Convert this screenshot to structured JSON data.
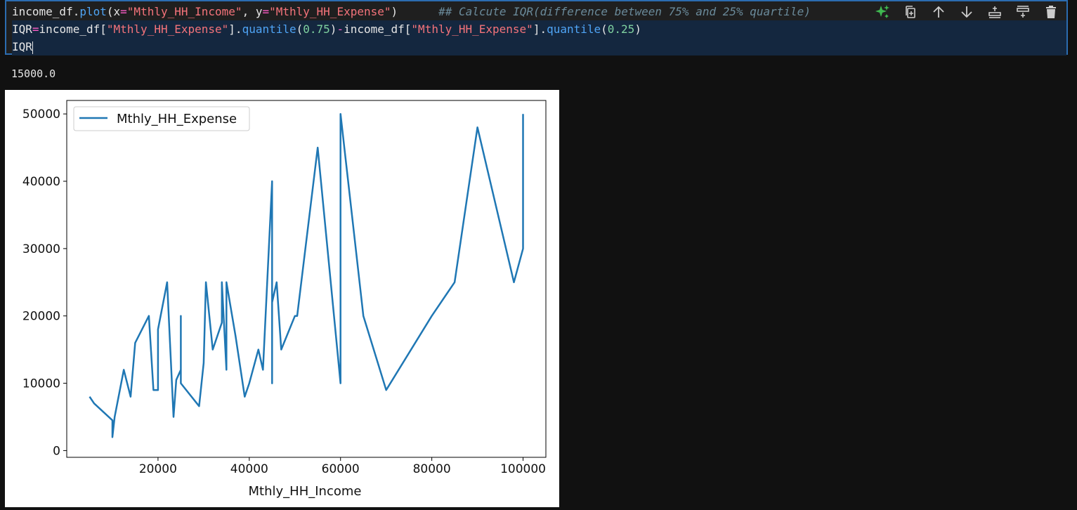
{
  "code": {
    "line1": {
      "var": "income_df",
      "dot": ".",
      "method": "plot",
      "open": "(",
      "arg1_key": "x",
      "eq1": "=",
      "arg1_val": "\"Mthly_HH_Income\"",
      "comma": ", ",
      "arg2_key": "y",
      "eq2": "=",
      "arg2_val": "\"Mthly_HH_Expense\"",
      "close": ")",
      "comment": "## Calcute IQR(difference between 75% and 25% quartile)"
    },
    "line2": {
      "lhs": "IQR",
      "eq": "=",
      "var1": "income_df",
      "ob1": "[",
      "key1": "\"Mthly_HH_Expense\"",
      "cb1": "]",
      "dot1": ".",
      "method1": "quantile",
      "op1": "(",
      "num1": "0.75",
      "cp1": ")",
      "minus": "-",
      "var2": "income_df",
      "ob2": "[",
      "key2": "\"Mthly_HH_Expense\"",
      "cb2": "].",
      "method2": "quantile",
      "op2": "(",
      "num2": "0.25",
      "cp2": ")"
    },
    "line3": "IQR"
  },
  "toolbar": {
    "icons": [
      "sparkle-icon",
      "copy-icon",
      "arrow-up-icon",
      "arrow-down-icon",
      "insert-below-icon",
      "insert-above-icon",
      "trash-icon"
    ],
    "sparkle_color": "#3fb950",
    "icon_color": "#cccccc"
  },
  "output": {
    "text": "15000.0"
  },
  "chart_data": {
    "type": "line",
    "title": "",
    "xlabel": "Mthly_HH_Income",
    "ylabel": "",
    "xlim": [
      0,
      105000
    ],
    "ylim": [
      -1000,
      52000
    ],
    "x_ticks": [
      20000,
      40000,
      60000,
      80000,
      100000
    ],
    "x_tick_labels": [
      "20000",
      "40000",
      "60000",
      "80000",
      "100000"
    ],
    "y_ticks": [
      0,
      10000,
      20000,
      30000,
      40000,
      50000
    ],
    "y_tick_labels": [
      "0",
      "10000",
      "20000",
      "30000",
      "40000",
      "50000"
    ],
    "legend": {
      "position": "top-left",
      "entries": [
        "Mthly_HH_Expense"
      ]
    },
    "series": [
      {
        "name": "Mthly_HH_Expense",
        "color": "#1f77b4",
        "x": [
          5000,
          6000,
          10000,
          10000,
          10500,
          12500,
          14000,
          15000,
          18000,
          19000,
          20000,
          20000,
          22000,
          23400,
          24000,
          25000,
          25000,
          25000,
          29000,
          30000,
          30500,
          32000,
          34000,
          34000,
          35000,
          35000,
          37000,
          39000,
          40000,
          42000,
          43000,
          45000,
          45000,
          45000,
          46000,
          47000,
          50000,
          50500,
          55000,
          60000,
          60000,
          65000,
          70000,
          80000,
          85000,
          90000,
          98000,
          100000,
          100000,
          100000
        ],
        "y": [
          8000,
          7000,
          4500,
          2000,
          5000,
          12000,
          8000,
          16000,
          20000,
          9000,
          9000,
          18000,
          25000,
          5000,
          10500,
          12000,
          20000,
          10000,
          6600,
          13000,
          25000,
          15000,
          19000,
          25000,
          12000,
          25000,
          17000,
          8000,
          10000,
          15000,
          12000,
          40000,
          10000,
          22000,
          25000,
          15000,
          20000,
          20000,
          45000,
          10000,
          50000,
          20000,
          9000,
          20000,
          25000,
          48000,
          25000,
          30000,
          40000,
          50000
        ]
      }
    ],
    "grid": false
  }
}
